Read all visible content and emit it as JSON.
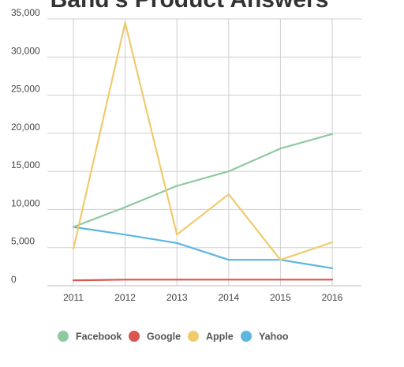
{
  "chart_data": {
    "type": "line",
    "title": "Band's Product Answers",
    "x": [
      "2011",
      "2012",
      "2013",
      "2014",
      "2015",
      "2016"
    ],
    "ylim": [
      0,
      35000
    ],
    "yticks": [
      0,
      5000,
      10000,
      15000,
      20000,
      25000,
      30000,
      35000
    ],
    "ytick_labels": [
      "0",
      "5,000",
      "10,000",
      "15,000",
      "20,000",
      "25,000",
      "30,000",
      "35,000"
    ],
    "grid": true,
    "legend_position": "bottom",
    "series": [
      {
        "name": "Facebook",
        "color": "#8ec9a1",
        "values": [
          7700,
          10300,
          13100,
          15000,
          18000,
          19900
        ]
      },
      {
        "name": "Google",
        "color": "#d9574f",
        "values": [
          700,
          800,
          800,
          800,
          800,
          800
        ]
      },
      {
        "name": "Apple",
        "color": "#f0cb6e",
        "values": [
          4800,
          34500,
          6700,
          12000,
          3400,
          5700
        ]
      },
      {
        "name": "Yahoo",
        "color": "#5cb6e0",
        "values": [
          7700,
          6700,
          5600,
          3400,
          3400,
          2300
        ]
      }
    ]
  }
}
